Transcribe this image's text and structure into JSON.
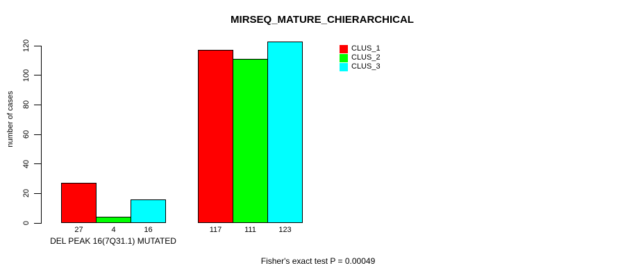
{
  "chart_data": {
    "type": "bar",
    "title": "MIRSEQ_MATURE_CHIERARCHICAL",
    "ylabel": "number of cases",
    "xlabel": "",
    "ylim": [
      0,
      123
    ],
    "y_ticks": [
      0,
      20,
      40,
      60,
      80,
      100,
      120
    ],
    "grid": false,
    "categories": [
      "DEL PEAK 16(7Q31.1) MUTATED",
      ""
    ],
    "series": [
      {
        "name": "CLUS_1",
        "color": "#FF0000",
        "values": [
          27,
          117
        ]
      },
      {
        "name": "CLUS_2",
        "color": "#00FF00",
        "values": [
          4,
          111
        ]
      },
      {
        "name": "CLUS_3",
        "color": "#00FFFF",
        "values": [
          16,
          123
        ]
      }
    ],
    "bar_value_labels": [
      [
        27,
        4,
        16
      ],
      [
        117,
        111,
        123
      ]
    ],
    "legend": {
      "position": "top-right",
      "entries": [
        "CLUS_1",
        "CLUS_2",
        "CLUS_3"
      ]
    },
    "annotation": "Fisher's exact test P = 0.00049"
  }
}
